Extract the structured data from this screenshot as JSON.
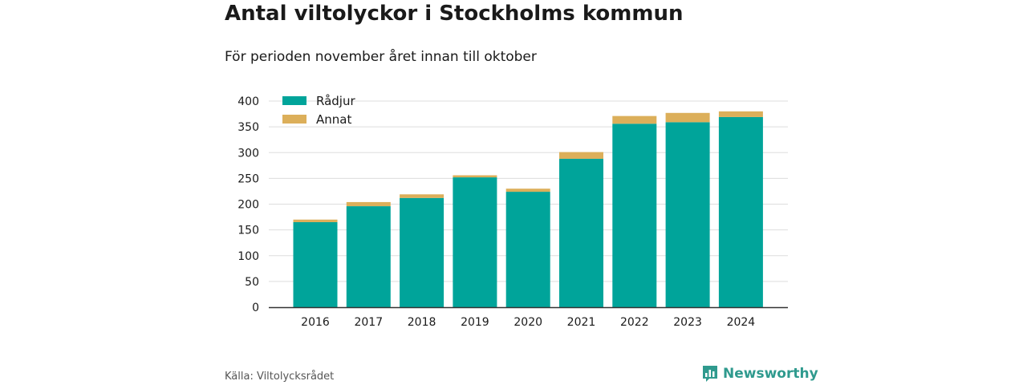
{
  "header": {
    "title": "Antal viltolyckor i Stockholms kommun",
    "subtitle": "För perioden november året innan till oktober"
  },
  "footer": {
    "source": "Källa: Viltolycksrådet",
    "brand": "Newsworthy"
  },
  "colors": {
    "radjur": "#00a49a",
    "annat": "#dcaf5a",
    "grid": "#dddddd",
    "axis": "#333333",
    "brand": "#2f9a8e"
  },
  "icons": {
    "brand": "newsworthy-logo-icon"
  },
  "chart_data": {
    "type": "bar",
    "stacked": true,
    "categories": [
      "2016",
      "2017",
      "2018",
      "2019",
      "2020",
      "2021",
      "2022",
      "2023",
      "2024"
    ],
    "series": [
      {
        "name": "Rådjur",
        "values": [
          165,
          196,
          212,
          252,
          224,
          288,
          356,
          359,
          369
        ]
      },
      {
        "name": "Annat",
        "values": [
          5,
          8,
          7,
          4,
          6,
          13,
          15,
          18,
          11
        ]
      }
    ],
    "title": "Antal viltolyckor i Stockholms kommun",
    "subtitle": "För perioden november året innan till oktober",
    "xlabel": "",
    "ylabel": "",
    "ylim": [
      0,
      400
    ],
    "yticks": [
      0,
      50,
      100,
      150,
      200,
      250,
      300,
      350,
      400
    ],
    "grid": true,
    "legend": "top-left"
  }
}
